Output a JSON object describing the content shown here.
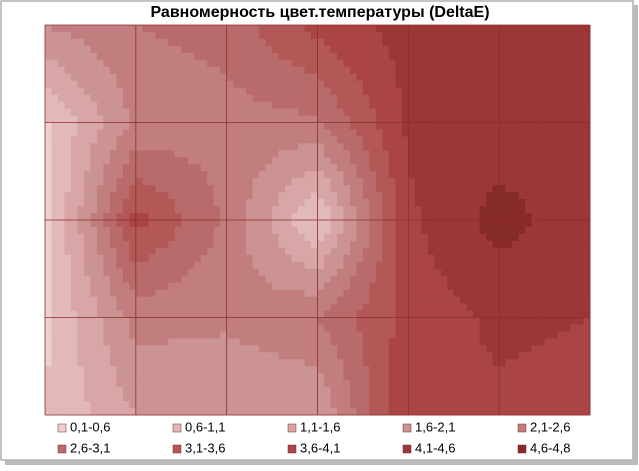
{
  "chart_data": {
    "type": "contour",
    "title": "Равномерность цвет.температуры (DeltaE)",
    "z": [
      [
        2.1,
        2.6,
        2.8,
        3.8,
        4.3,
        4.3,
        4.1
      ],
      [
        0.5,
        2.2,
        2.4,
        2.5,
        4.2,
        4.3,
        4.2
      ],
      [
        0.3,
        3.8,
        2.5,
        0.5,
        4.0,
        4.8,
        4.3
      ],
      [
        0.5,
        2.3,
        2.2,
        2.6,
        3.8,
        4.2,
        4.1
      ],
      [
        0.6,
        1.6,
        1.6,
        1.6,
        4.1,
        4.0,
        3.9
      ]
    ],
    "series": [
      {
        "name": "0,1-0,6",
        "color": "#edcfcf",
        "range": [
          0.1,
          0.6
        ]
      },
      {
        "name": "0,6-1,1",
        "color": "#e2b8b8",
        "range": [
          0.6,
          1.1
        ]
      },
      {
        "name": "1,1-1,6",
        "color": "#d8a6a6",
        "range": [
          1.1,
          1.6
        ]
      },
      {
        "name": "1,6-2,1",
        "color": "#cc9393",
        "range": [
          1.6,
          2.1
        ]
      },
      {
        "name": "2,1-2,6",
        "color": "#c27e7e",
        "range": [
          2.1,
          2.6
        ]
      },
      {
        "name": "2,6-3,1",
        "color": "#b96a6a",
        "range": [
          2.6,
          3.1
        ]
      },
      {
        "name": "3,1-3,6",
        "color": "#b35757",
        "range": [
          3.1,
          3.6
        ]
      },
      {
        "name": "3,6-4,1",
        "color": "#ab4545",
        "range": [
          3.6,
          4.1
        ]
      },
      {
        "name": "4,1-4,6",
        "color": "#9c3737",
        "range": [
          4.1,
          4.6
        ]
      },
      {
        "name": "4,6-4,8",
        "color": "#872a2a",
        "range": [
          4.6,
          4.8
        ]
      }
    ],
    "grid": true
  }
}
